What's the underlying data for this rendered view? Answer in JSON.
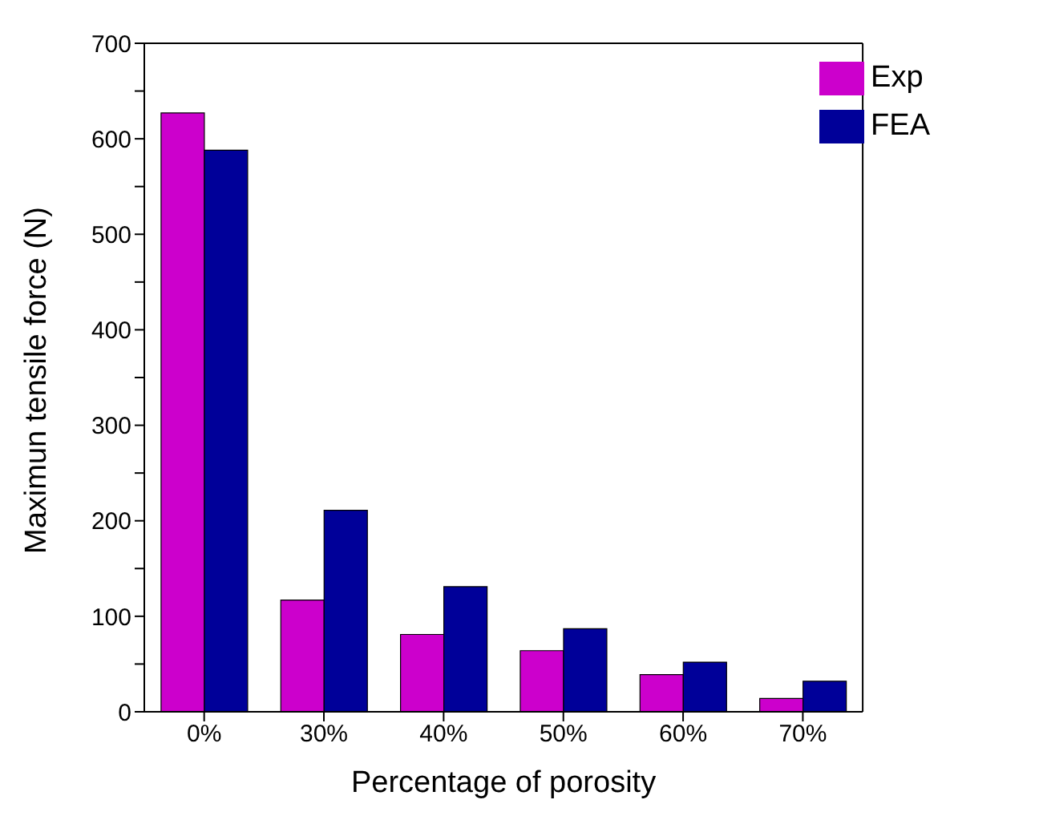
{
  "chart_data": {
    "type": "bar",
    "xlabel": "Percentage of porosity",
    "ylabel": "Maximun tensile force (N)",
    "categories": [
      "0%",
      "30%",
      "40%",
      "50%",
      "60%",
      "70%"
    ],
    "series": [
      {
        "name": "Exp",
        "color": "#cc00cc",
        "values": [
          627,
          117,
          81,
          64,
          39,
          14
        ]
      },
      {
        "name": "FEA",
        "color": "#000099",
        "values": [
          588,
          211,
          131,
          87,
          52,
          32
        ]
      }
    ],
    "ylim": [
      0,
      700
    ],
    "yticks": [
      0,
      {
        "value": 50,
        "label": null
      },
      100,
      {
        "value": 150,
        "label": null
      },
      200,
      {
        "value": 250,
        "label": null
      },
      300,
      {
        "value": 350,
        "label": null
      },
      400,
      {
        "value": 450,
        "label": null
      },
      500,
      {
        "value": 550,
        "label": null
      },
      600,
      {
        "value": 650,
        "label": null
      },
      700
    ],
    "grid": false,
    "legend": "top right"
  }
}
